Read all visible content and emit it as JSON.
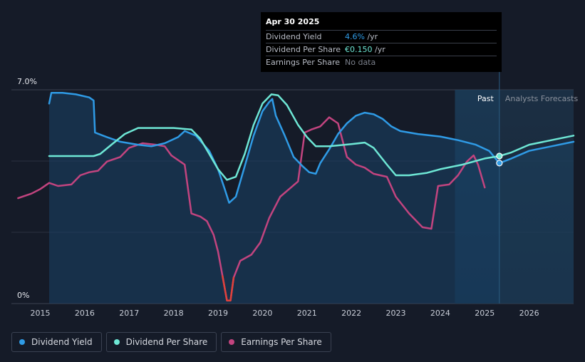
{
  "tooltip": {
    "date": "Apr 30 2025",
    "rows": [
      {
        "label": "Dividend Yield",
        "value": "4.6%",
        "unit": " /yr"
      },
      {
        "label": "Dividend Per Share",
        "value": "€0.150",
        "unit": " /yr"
      },
      {
        "label": "Earnings Per Share",
        "value": "No data",
        "unit": ""
      }
    ]
  },
  "legend": {
    "items": [
      {
        "label": "Dividend Yield",
        "color": "#2f9be6"
      },
      {
        "label": "Dividend Per Share",
        "color": "#6ee7d5"
      },
      {
        "label": "Earnings Per Share",
        "color": "#c2447f"
      }
    ]
  },
  "chart_data": {
    "type": "line",
    "title": "",
    "xlabel": "",
    "ylabel": "",
    "xlim": [
      2014.35,
      2027.0
    ],
    "ylim": [
      0,
      7.0
    ],
    "y_tick_labels": [
      "0%",
      "7.0%"
    ],
    "x_ticks": [
      2015,
      2016,
      2017,
      2018,
      2019,
      2020,
      2021,
      2022,
      2023,
      2024,
      2025,
      2026
    ],
    "regions": {
      "past_label": "Past",
      "forecast_label": "Analysts Forecasts",
      "divider_x": 2025.33,
      "highlight_start_x": 2024.33
    },
    "colors": {
      "dividend_yield": "#2f9be6",
      "dividend_per_share": "#6ee7d5",
      "earnings_per_share": "#c2447f",
      "eps_negative": "#e0413b"
    },
    "series": [
      {
        "name": "Dividend Yield",
        "key": "dividend_yield",
        "points": [
          [
            2015.2,
            6.55
          ],
          [
            2015.25,
            6.9
          ],
          [
            2015.5,
            6.9
          ],
          [
            2015.8,
            6.85
          ],
          [
            2016.1,
            6.75
          ],
          [
            2016.2,
            6.65
          ],
          [
            2016.23,
            5.6
          ],
          [
            2016.5,
            5.45
          ],
          [
            2016.8,
            5.3
          ],
          [
            2017.2,
            5.2
          ],
          [
            2017.5,
            5.15
          ],
          [
            2017.8,
            5.25
          ],
          [
            2018.1,
            5.45
          ],
          [
            2018.25,
            5.65
          ],
          [
            2018.5,
            5.5
          ],
          [
            2018.8,
            5.0
          ],
          [
            2019.0,
            4.4
          ],
          [
            2019.15,
            3.75
          ],
          [
            2019.25,
            3.3
          ],
          [
            2019.4,
            3.5
          ],
          [
            2019.6,
            4.5
          ],
          [
            2019.8,
            5.5
          ],
          [
            2020.0,
            6.3
          ],
          [
            2020.15,
            6.6
          ],
          [
            2020.22,
            6.7
          ],
          [
            2020.3,
            6.15
          ],
          [
            2020.5,
            5.5
          ],
          [
            2020.7,
            4.8
          ],
          [
            2020.9,
            4.5
          ],
          [
            2021.05,
            4.3
          ],
          [
            2021.2,
            4.25
          ],
          [
            2021.3,
            4.6
          ],
          [
            2021.5,
            5.05
          ],
          [
            2021.7,
            5.55
          ],
          [
            2021.9,
            5.9
          ],
          [
            2022.1,
            6.15
          ],
          [
            2022.3,
            6.25
          ],
          [
            2022.5,
            6.2
          ],
          [
            2022.7,
            6.05
          ],
          [
            2022.9,
            5.8
          ],
          [
            2023.1,
            5.65
          ],
          [
            2023.5,
            5.55
          ],
          [
            2024.0,
            5.47
          ],
          [
            2024.4,
            5.35
          ],
          [
            2024.8,
            5.2
          ],
          [
            2025.1,
            5.0
          ],
          [
            2025.33,
            4.6
          ]
        ]
      },
      {
        "name": "Dividend Per Share",
        "key": "dividend_per_share",
        "points": [
          [
            2015.2,
            4.83
          ],
          [
            2016.2,
            4.83
          ],
          [
            2016.35,
            4.9
          ],
          [
            2016.6,
            5.2
          ],
          [
            2016.9,
            5.55
          ],
          [
            2017.2,
            5.75
          ],
          [
            2017.5,
            5.75
          ],
          [
            2018.0,
            5.75
          ],
          [
            2018.4,
            5.7
          ],
          [
            2018.6,
            5.4
          ],
          [
            2018.8,
            4.9
          ],
          [
            2019.0,
            4.4
          ],
          [
            2019.2,
            4.05
          ],
          [
            2019.4,
            4.15
          ],
          [
            2019.6,
            4.9
          ],
          [
            2019.8,
            5.85
          ],
          [
            2020.0,
            6.55
          ],
          [
            2020.2,
            6.85
          ],
          [
            2020.35,
            6.82
          ],
          [
            2020.55,
            6.5
          ],
          [
            2020.8,
            5.85
          ],
          [
            2021.0,
            5.45
          ],
          [
            2021.2,
            5.15
          ],
          [
            2021.5,
            5.15
          ],
          [
            2022.0,
            5.22
          ],
          [
            2022.3,
            5.27
          ],
          [
            2022.5,
            5.1
          ],
          [
            2022.8,
            4.55
          ],
          [
            2023.0,
            4.2
          ],
          [
            2023.3,
            4.2
          ],
          [
            2023.7,
            4.28
          ],
          [
            2024.0,
            4.4
          ],
          [
            2024.5,
            4.55
          ],
          [
            2025.0,
            4.75
          ],
          [
            2025.33,
            4.83
          ],
          [
            2025.6,
            4.95
          ],
          [
            2026.0,
            5.2
          ],
          [
            2026.5,
            5.35
          ],
          [
            2027.0,
            5.5
          ]
        ]
      },
      {
        "name": "Earnings Per Share",
        "key": "earnings_per_share",
        "points": [
          [
            2014.5,
            3.45
          ],
          [
            2014.8,
            3.6
          ],
          [
            2015.0,
            3.75
          ],
          [
            2015.2,
            3.95
          ],
          [
            2015.4,
            3.85
          ],
          [
            2015.7,
            3.9
          ],
          [
            2015.9,
            4.2
          ],
          [
            2016.1,
            4.3
          ],
          [
            2016.3,
            4.35
          ],
          [
            2016.5,
            4.65
          ],
          [
            2016.8,
            4.8
          ],
          [
            2017.0,
            5.1
          ],
          [
            2017.3,
            5.25
          ],
          [
            2017.6,
            5.2
          ],
          [
            2017.8,
            5.15
          ],
          [
            2017.95,
            4.85
          ],
          [
            2018.1,
            4.7
          ],
          [
            2018.25,
            4.55
          ],
          [
            2018.4,
            2.95
          ],
          [
            2018.6,
            2.85
          ],
          [
            2018.75,
            2.7
          ],
          [
            2018.9,
            2.25
          ],
          [
            2019.0,
            1.7
          ],
          [
            2019.1,
            0.9
          ],
          [
            2019.2,
            0.1
          ],
          [
            2019.28,
            0.1
          ],
          [
            2019.35,
            0.85
          ],
          [
            2019.5,
            1.4
          ],
          [
            2019.75,
            1.6
          ],
          [
            2019.95,
            2.0
          ],
          [
            2020.15,
            2.8
          ],
          [
            2020.4,
            3.5
          ],
          [
            2020.6,
            3.75
          ],
          [
            2020.8,
            4.0
          ],
          [
            2020.95,
            5.6
          ],
          [
            2021.1,
            5.7
          ],
          [
            2021.3,
            5.8
          ],
          [
            2021.5,
            6.1
          ],
          [
            2021.7,
            5.9
          ],
          [
            2021.9,
            4.8
          ],
          [
            2022.1,
            4.55
          ],
          [
            2022.3,
            4.45
          ],
          [
            2022.5,
            4.25
          ],
          [
            2022.8,
            4.15
          ],
          [
            2023.0,
            3.5
          ],
          [
            2023.3,
            2.95
          ],
          [
            2023.6,
            2.5
          ],
          [
            2023.8,
            2.45
          ],
          [
            2023.95,
            3.85
          ],
          [
            2024.2,
            3.9
          ],
          [
            2024.4,
            4.2
          ],
          [
            2024.6,
            4.65
          ],
          [
            2024.75,
            4.85
          ],
          [
            2024.85,
            4.55
          ],
          [
            2025.0,
            3.8
          ]
        ]
      }
    ],
    "dividend_yield_forecast": [
      [
        2025.33,
        4.6
      ],
      [
        2025.6,
        4.75
      ],
      [
        2026.0,
        5.0
      ],
      [
        2026.5,
        5.15
      ],
      [
        2027.0,
        5.3
      ]
    ],
    "markers": [
      {
        "series": "dividend_per_share",
        "x": 2025.33,
        "y": 4.83
      },
      {
        "series": "dividend_yield",
        "x": 2025.33,
        "y": 4.6
      }
    ]
  }
}
